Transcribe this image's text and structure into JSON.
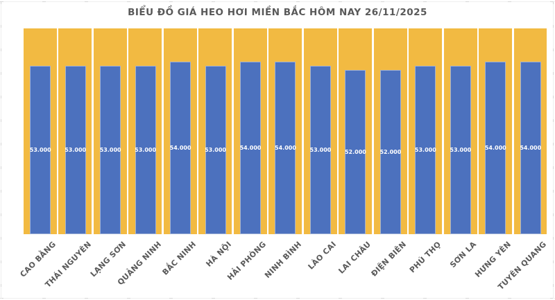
{
  "chart_data": {
    "type": "bar",
    "title": "BIỂU ĐỒ GIÁ HEO HƠI MIỀN BẮC HÔM NAY 26/11/2025",
    "categories": [
      "CAO BẰNG",
      "THÁI NGUYÊN",
      "LẠNG SƠN",
      "QUẢNG NINH",
      "BẮC NINH",
      "HÀ NỘI",
      "HẢI PHÒNG",
      "NINH BÌNH",
      "LÀO CAI",
      "LAI CHÂU",
      "ĐIỆN BIÊN",
      "PHÚ THỌ",
      "SƠN LA",
      "HƯNG YÊN",
      "TUYÊN QUANG"
    ],
    "values": [
      53000,
      53000,
      53000,
      53000,
      54000,
      53000,
      54000,
      54000,
      53000,
      52000,
      52000,
      53000,
      53000,
      54000,
      54000
    ],
    "data_labels": [
      "53.000",
      "53.000",
      "53.000",
      "53.000",
      "54.000",
      "53.000",
      "54.000",
      "54.000",
      "53.000",
      "52.000",
      "52.000",
      "53.000",
      "53.000",
      "54.000",
      "54.000"
    ],
    "xlabel": "",
    "ylabel": "",
    "ylim": [
      11000,
      62300
    ],
    "y_axis_visible": false,
    "grid": false,
    "legend": false,
    "layout_hints": {
      "bar_color": "#4C71BE",
      "column_background_color": "#F2BA42",
      "column_background_full_height": true,
      "value_label_color": "#FFFFFF",
      "axis_label_color": "#595959",
      "title_color": "#595959",
      "x_label_rotation_deg": -45,
      "legend_position": "none"
    }
  }
}
